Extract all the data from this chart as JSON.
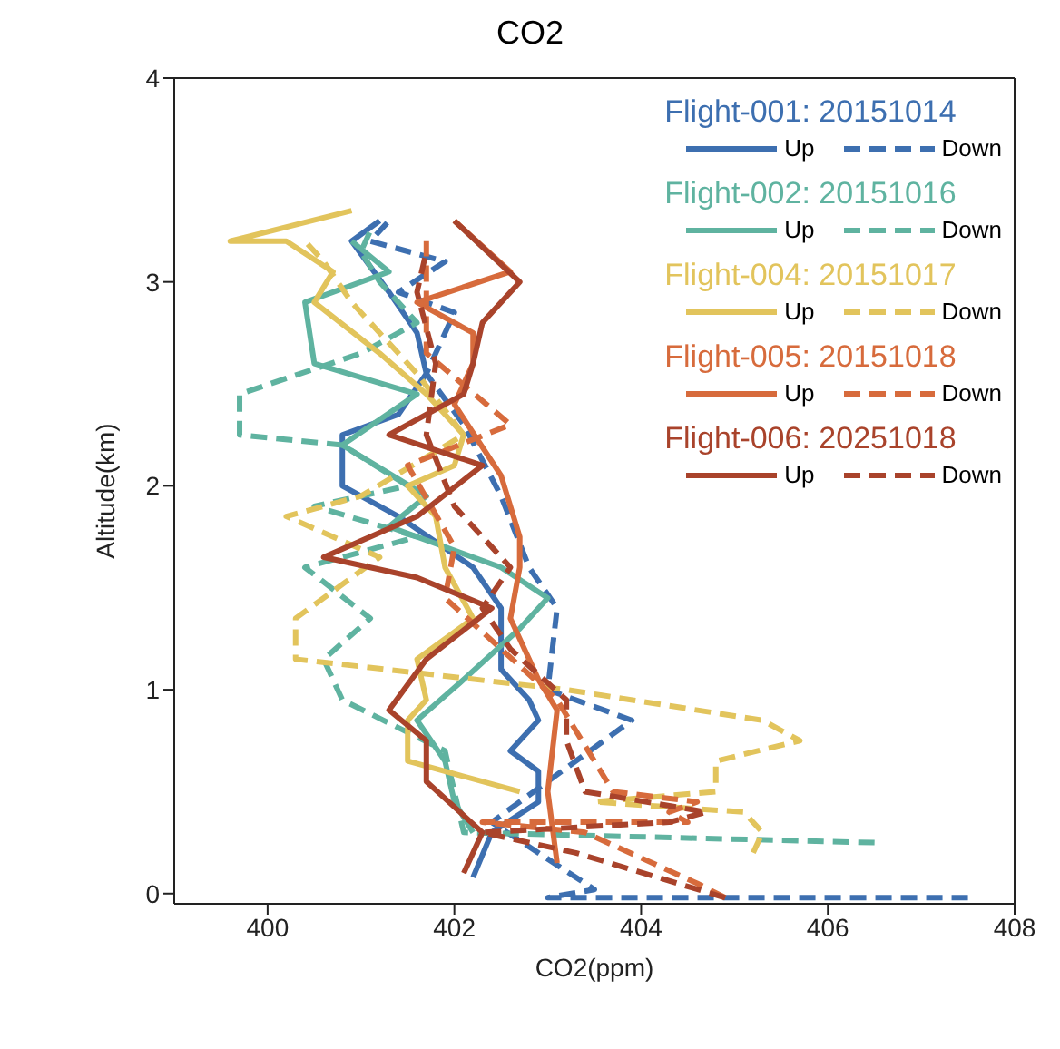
{
  "chart_data": {
    "type": "line",
    "title": "CO2",
    "xlabel": "CO2(ppm)",
    "ylabel": "Altitude(km)",
    "xlim": [
      399,
      408
    ],
    "xticks": [
      400,
      402,
      404,
      406,
      408
    ],
    "ylim": [
      -0.05,
      4
    ],
    "yticks": [
      0,
      1,
      2,
      3,
      4
    ],
    "legend": "top right",
    "annotations": [
      "Flight-001: 20151014",
      "Flight-002: 20151016",
      "Flight-004: 20151017",
      "Flight-005: 20151018",
      "Flight-006: 20251018"
    ],
    "series": [
      {
        "name": "Up",
        "color": "#3d6fb0",
        "line_style": "solid",
        "x": [
          402.2,
          402.4,
          402.9,
          402.9,
          402.6,
          402.9,
          402.8,
          402.5,
          402.5,
          402.2,
          401.4,
          400.8,
          400.8,
          401.4,
          401.7,
          401.6,
          401.3,
          400.9,
          401.2
        ],
        "values": [
          0.08,
          0.3,
          0.45,
          0.6,
          0.7,
          0.85,
          0.95,
          1.1,
          1.4,
          1.6,
          1.85,
          2.0,
          2.25,
          2.35,
          2.55,
          2.75,
          2.95,
          3.2,
          3.3
        ]
      },
      {
        "name": "Down",
        "color": "#3d6fb0",
        "line_style": "dashed",
        "x": [
          407.5,
          403.0,
          403.5,
          402.4,
          403.9,
          403.0,
          403.1,
          402.8,
          402.5,
          402.1,
          401.7,
          402.0,
          401.4,
          401.9,
          401.1,
          401.3
        ],
        "values": [
          -0.02,
          -0.02,
          0.02,
          0.35,
          0.85,
          1.0,
          1.4,
          1.6,
          1.95,
          2.3,
          2.55,
          2.85,
          2.95,
          3.1,
          3.2,
          3.3
        ]
      },
      {
        "name": "Up",
        "color": "#5fb3a0",
        "line_style": "solid",
        "x": [
          402.2,
          402.0,
          401.9,
          401.6,
          402.1,
          402.7,
          403.0,
          402.5,
          401.3,
          401.7,
          400.8,
          401.6,
          400.5,
          400.4,
          401.3,
          400.9
        ],
        "values": [
          0.3,
          0.45,
          0.65,
          0.85,
          1.05,
          1.3,
          1.45,
          1.6,
          1.8,
          1.95,
          2.2,
          2.45,
          2.6,
          2.9,
          3.05,
          3.2
        ]
      },
      {
        "name": "Down",
        "color": "#5fb3a0",
        "line_style": "dashed",
        "x": [
          406.5,
          402.1,
          401.9,
          400.8,
          400.6,
          401.1,
          400.4,
          401.6,
          400.5,
          401.5,
          400.8,
          399.7,
          399.7,
          401.0,
          401.6,
          401.2,
          401.0,
          401.1
        ],
        "values": [
          0.25,
          0.3,
          0.7,
          0.95,
          1.15,
          1.35,
          1.6,
          1.75,
          1.9,
          2.0,
          2.2,
          2.25,
          2.45,
          2.65,
          2.8,
          3.0,
          3.15,
          3.25
        ]
      },
      {
        "name": "Up",
        "color": "#e2c45c",
        "line_style": "solid",
        "x": [
          402.7,
          401.5,
          401.5,
          401.7,
          401.6,
          402.2,
          401.9,
          401.8,
          401.5,
          402.0,
          402.1,
          401.7,
          401.2,
          400.5,
          400.7,
          400.2,
          399.6,
          400.9
        ],
        "values": [
          0.5,
          0.65,
          0.85,
          0.95,
          1.15,
          1.35,
          1.6,
          1.85,
          2.0,
          2.1,
          2.25,
          2.45,
          2.65,
          2.9,
          3.05,
          3.2,
          3.2,
          3.35
        ]
      },
      {
        "name": "Down",
        "color": "#e2c45c",
        "line_style": "dashed",
        "x": [
          405.2,
          405.3,
          405.1,
          403.5,
          404.8,
          404.8,
          405.7,
          405.3,
          403.2,
          400.3,
          400.3,
          401.2,
          400.2,
          401.0,
          402.1,
          401.6,
          400.9,
          400.6,
          400.4
        ],
        "values": [
          0.2,
          0.3,
          0.4,
          0.45,
          0.5,
          0.65,
          0.75,
          0.85,
          1.0,
          1.15,
          1.35,
          1.65,
          1.85,
          1.95,
          2.25,
          2.55,
          2.9,
          3.1,
          3.2
        ]
      },
      {
        "name": "Up",
        "color": "#d76b3c",
        "line_style": "solid",
        "x": [
          403.1,
          403.0,
          403.1,
          402.9,
          402.6,
          402.7,
          402.7,
          402.5,
          402.0,
          402.2,
          402.2,
          401.6,
          402.6,
          402.0
        ],
        "values": [
          0.15,
          0.5,
          0.9,
          1.05,
          1.35,
          1.6,
          1.75,
          2.05,
          2.4,
          2.6,
          2.75,
          2.9,
          3.05,
          3.3
        ]
      },
      {
        "name": "Down",
        "color": "#d76b3c",
        "line_style": "dashed",
        "x": [
          404.9,
          404.6,
          403.4,
          402.3,
          404.5,
          404.3,
          404.6,
          403.7,
          403.1,
          402.5,
          401.9,
          402.0,
          401.5,
          402.6,
          401.7,
          401.7
        ],
        "values": [
          -0.02,
          0.05,
          0.3,
          0.35,
          0.35,
          0.4,
          0.45,
          0.5,
          0.95,
          1.2,
          1.45,
          1.7,
          2.1,
          2.3,
          2.65,
          3.2
        ]
      },
      {
        "name": "Up",
        "color": "#a9432b",
        "line_style": "solid",
        "x": [
          402.1,
          402.3,
          401.7,
          401.7,
          401.3,
          401.7,
          402.4,
          401.6,
          400.6,
          401.6,
          402.3,
          401.3,
          402.1,
          402.2,
          402.3,
          402.7,
          402.0
        ],
        "values": [
          0.1,
          0.3,
          0.55,
          0.75,
          0.9,
          1.15,
          1.4,
          1.55,
          1.65,
          1.85,
          2.1,
          2.25,
          2.45,
          2.6,
          2.8,
          3.0,
          3.3
        ]
      },
      {
        "name": "Down",
        "color": "#a9432b",
        "line_style": "dashed",
        "x": [
          404.9,
          403.3,
          402.3,
          404.3,
          404.7,
          403.4,
          403.2,
          403.2,
          402.6,
          402.3,
          402.6,
          402.0,
          401.7,
          401.8,
          401.6,
          401.7
        ],
        "values": [
          -0.02,
          0.2,
          0.3,
          0.35,
          0.4,
          0.5,
          0.75,
          0.95,
          1.2,
          1.4,
          1.6,
          1.9,
          2.25,
          2.6,
          2.95,
          3.15
        ]
      }
    ]
  }
}
